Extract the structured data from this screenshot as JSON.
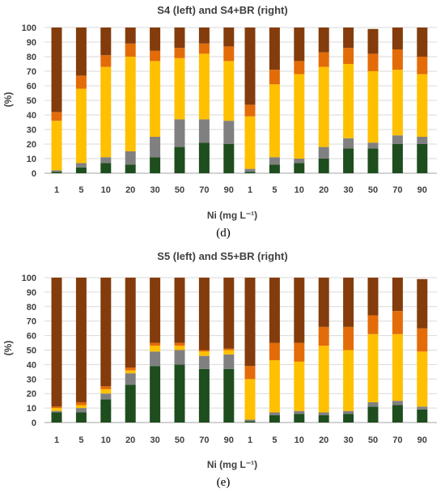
{
  "colors": {
    "seg1": "#1e4d1e",
    "seg2": "#808080",
    "seg3": "#ffc000",
    "seg4": "#e36c09",
    "seg5": "#843c0c"
  },
  "chart_data": [
    {
      "type": "bar",
      "stacked": true,
      "panel_label": "(d)",
      "title": "S4 (left) and S4+BR (right)",
      "xlabel": "Ni (mg L⁻¹)",
      "ylabel": "(%)",
      "ylim": [
        0,
        100
      ],
      "yticks": [
        0,
        10,
        20,
        30,
        40,
        50,
        60,
        70,
        80,
        90,
        100
      ],
      "grid": true,
      "groups": [
        {
          "categories": [
            "1",
            "5",
            "10",
            "20",
            "30",
            "50",
            "70",
            "90"
          ],
          "stacks": [
            [
              1,
              1,
              34,
              6,
              58
            ],
            [
              4,
              3,
              51,
              9,
              33
            ],
            [
              7,
              4,
              62,
              8,
              19
            ],
            [
              6,
              9,
              65,
              9,
              11
            ],
            [
              11,
              14,
              52,
              7,
              16
            ],
            [
              18,
              19,
              42,
              7,
              14
            ],
            [
              21,
              16,
              45,
              7,
              11
            ],
            [
              20,
              16,
              41,
              10,
              13
            ]
          ]
        },
        {
          "categories": [
            "1",
            "5",
            "10",
            "20",
            "30",
            "50",
            "70",
            "90"
          ],
          "stacks": [
            [
              1,
              2,
              36,
              8,
              53
            ],
            [
              6,
              5,
              50,
              10,
              29
            ],
            [
              7,
              3,
              58,
              9,
              23
            ],
            [
              10,
              8,
              55,
              10,
              17
            ],
            [
              17,
              7,
              51,
              11,
              14
            ],
            [
              17,
              4,
              49,
              12,
              17
            ],
            [
              20,
              6,
              45,
              14,
              15
            ],
            [
              20,
              5,
              43,
              12,
              20
            ]
          ]
        }
      ]
    },
    {
      "type": "bar",
      "stacked": true,
      "panel_label": "(e)",
      "title": "S5 (left) and S5+BR (right)",
      "xlabel": "Ni (mg L⁻¹)",
      "ylabel": "(%)",
      "ylim": [
        0,
        100
      ],
      "yticks": [
        0,
        10,
        20,
        30,
        40,
        50,
        60,
        70,
        80,
        90,
        100
      ],
      "grid": true,
      "groups": [
        {
          "categories": [
            "1",
            "5",
            "10",
            "20",
            "30",
            "50",
            "70",
            "90"
          ],
          "stacks": [
            [
              7,
              1,
              2,
              1,
              89
            ],
            [
              7,
              3,
              2,
              2,
              86
            ],
            [
              16,
              4,
              3,
              2,
              75
            ],
            [
              26,
              8,
              2,
              2,
              62
            ],
            [
              39,
              10,
              4,
              2,
              45
            ],
            [
              40,
              10,
              3,
              2,
              45
            ],
            [
              37,
              9,
              3,
              1,
              50
            ],
            [
              37,
              10,
              3,
              1,
              49
            ]
          ]
        },
        {
          "categories": [
            "1",
            "5",
            "10",
            "20",
            "30",
            "50",
            "70",
            "90"
          ],
          "stacks": [
            [
              1,
              1,
              28,
              9,
              61
            ],
            [
              5,
              2,
              36,
              12,
              45
            ],
            [
              6,
              2,
              34,
              13,
              45
            ],
            [
              5,
              2,
              46,
              13,
              34
            ],
            [
              6,
              2,
              42,
              16,
              34
            ],
            [
              11,
              3,
              47,
              13,
              26
            ],
            [
              12,
              3,
              46,
              16,
              23
            ],
            [
              9,
              2,
              38,
              16,
              34
            ]
          ]
        }
      ]
    }
  ]
}
